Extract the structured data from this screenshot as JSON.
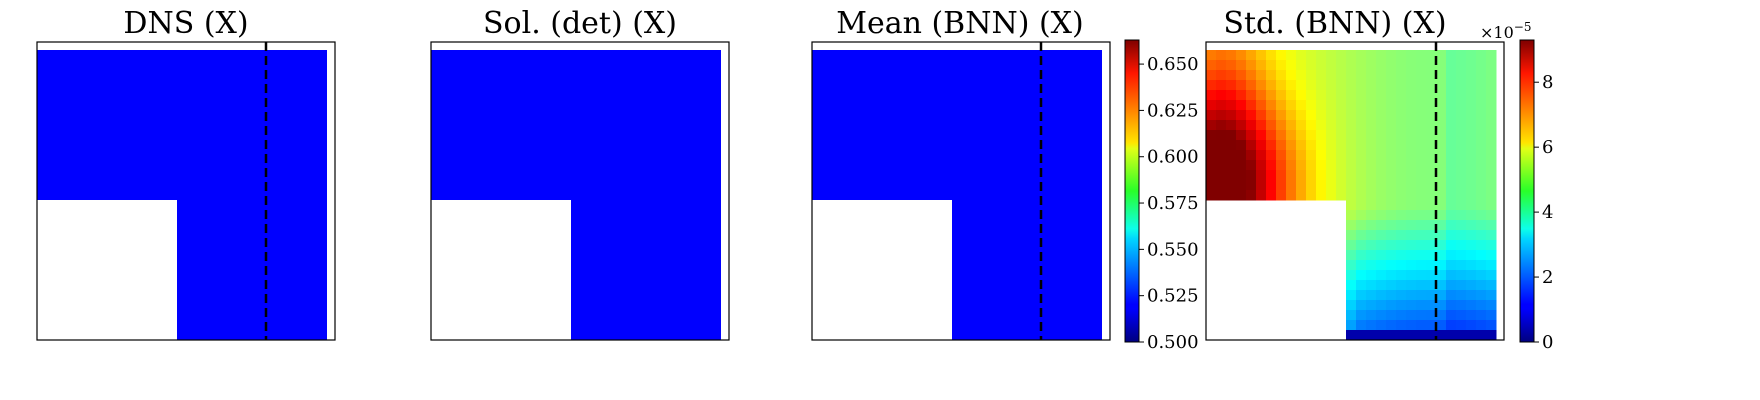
{
  "chart_data": [
    {
      "type": "heatmap",
      "title": "DNS (X)",
      "field_value": 0.5,
      "dashed_line": "vertical",
      "grid": false
    },
    {
      "type": "heatmap",
      "title": "Sol. (det) (X)",
      "field_value": 0.5,
      "dashed_line": "none",
      "grid": false
    },
    {
      "type": "heatmap",
      "title": "Mean (BNN) (X)",
      "field_value": 0.5,
      "dashed_line": "vertical",
      "grid": false,
      "colorbar": {
        "range": [
          0.5,
          0.663
        ],
        "ticks": [
          0.5,
          0.525,
          0.55,
          0.575,
          0.6,
          0.625,
          0.65
        ],
        "tick_labels": [
          "0.500",
          "0.525",
          "0.550",
          "0.575",
          "0.600",
          "0.625",
          "0.650"
        ],
        "colormap": "jet"
      }
    },
    {
      "type": "heatmap",
      "title": "Std. (BNN) (X)",
      "dashed_line": "vertical",
      "grid": false,
      "value_description": "peak ~9.2 near the left edge just above the cutout, ~5 in the green region, ~2.5 near the bottom, ~0 in the bottom strip (units of 1e-5)",
      "colorbar": {
        "range": [
          0,
          9.3
        ],
        "ticks": [
          0,
          2,
          4,
          6,
          8
        ],
        "tick_labels": [
          "0",
          "2",
          "4",
          "6",
          "8"
        ],
        "multiplier_label": "×10",
        "multiplier_exponent": "−5",
        "colormap": "jet"
      }
    }
  ]
}
